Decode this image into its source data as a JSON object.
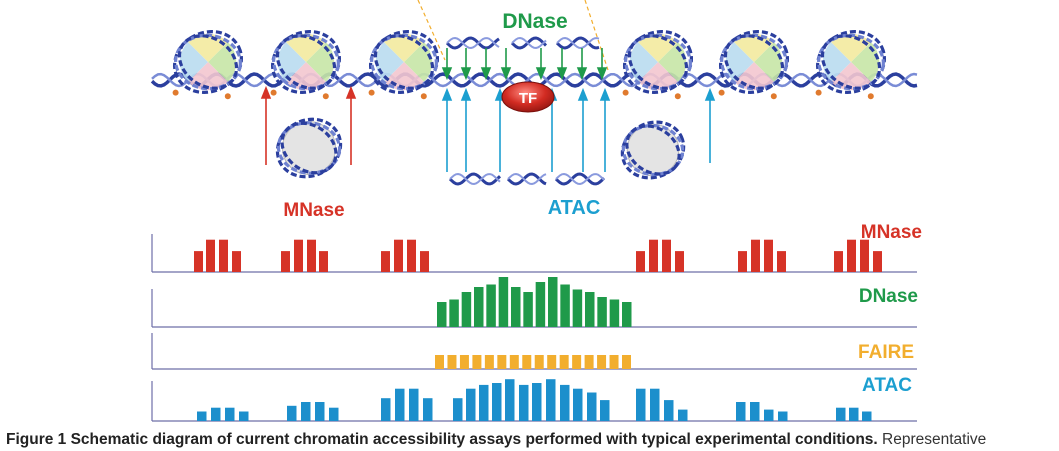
{
  "labels": {
    "dnase_top": "DNase",
    "tf": "TF",
    "mnase_mid": "MNase",
    "atac_mid": "ATAC"
  },
  "tracks": [
    {
      "name": "MNase",
      "color": "#d63327",
      "values": [
        0,
        0,
        0,
        0,
        0,
        0,
        0,
        0,
        0,
        0,
        0.55,
        0.85,
        0.85,
        0.55,
        0,
        0,
        0,
        0.55,
        0.85,
        0.85,
        0.55,
        0,
        0,
        0,
        0.55,
        0.85,
        0.85,
        0.55,
        0,
        0,
        0,
        0,
        0,
        0,
        0,
        0,
        0,
        0,
        0,
        0,
        0,
        0,
        0,
        0,
        0.55,
        0.85,
        0.85,
        0.55,
        0,
        0,
        0,
        0.55,
        0.85,
        0.85,
        0.55,
        0,
        0,
        0,
        0.55,
        0.85,
        0.85,
        0.55
      ]
    },
    {
      "name": "DNase",
      "color": "#1f9a4a",
      "values": [
        0.5,
        0.55,
        0.7,
        0.8,
        0.85,
        1.0,
        0.8,
        0.7,
        0.9,
        1.0,
        0.85,
        0.75,
        0.7,
        0.6,
        0.55,
        0.5
      ]
    },
    {
      "name": "FAIRE",
      "color": "#f2ae2e",
      "values": [
        0.5,
        0.5,
        0.5,
        0.5,
        0.5,
        0.5,
        0.5,
        0.5,
        0.5,
        0.5,
        0.5,
        0.5,
        0.5,
        0.5,
        0.5,
        0.5
      ]
    },
    {
      "name": "ATAC",
      "color": "#1c8fcc",
      "values": [
        0.25,
        0.35,
        0.35,
        0.25,
        0.4,
        0.5,
        0.5,
        0.35,
        0.6,
        0.85,
        0.85,
        0.6,
        0.6,
        0.85,
        0.95,
        1.0,
        1.1,
        0.95,
        1.0,
        1.1,
        0.95,
        0.85,
        0.75,
        0.55,
        0.85,
        0.85,
        0.55,
        0.3,
        0.5,
        0.5,
        0.3,
        0.25,
        0.35,
        0.35,
        0.25
      ]
    }
  ],
  "caption": {
    "bold": "Figure 1 Schematic diagram of current chromatin accessibility assays performed with typical experimental conditions.",
    "rest": " Representative"
  }
}
